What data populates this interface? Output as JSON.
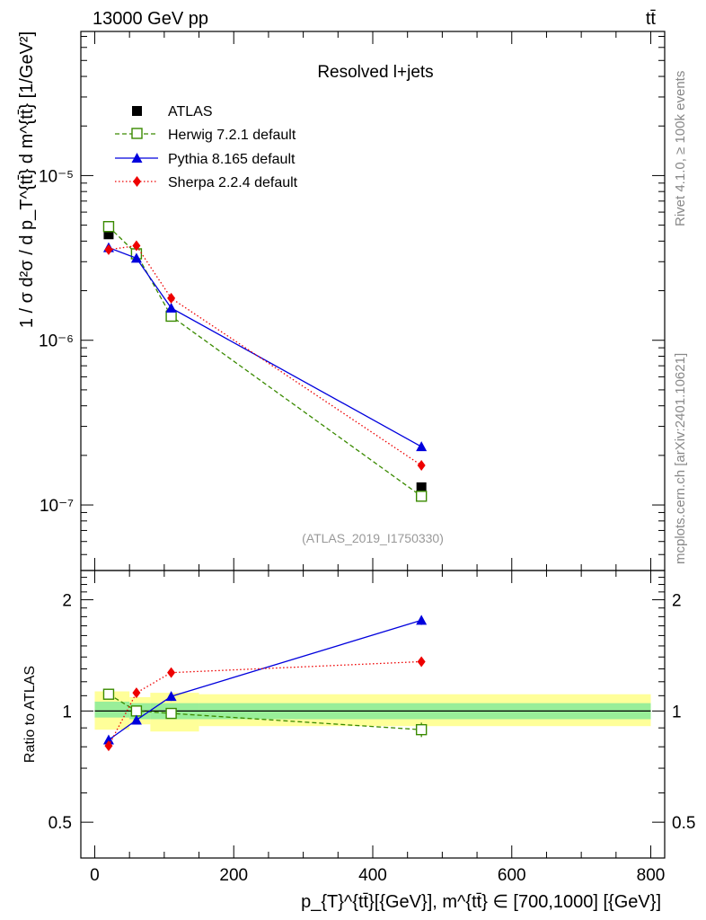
{
  "header": {
    "energy_label": "13000 GeV pp",
    "process_label": "tt̄"
  },
  "side_labels": {
    "rivet": "Rivet 4.1.0, ≥ 100k events",
    "source": "mcplots.cern.ch [arXiv:2401.10621]"
  },
  "chart_data": [
    {
      "type": "line",
      "panel": "main",
      "title": "Resolved l+jets",
      "watermark": "(ATLAS_2019_I1750330)",
      "ylabel": "1 / σ d²σ / d p_T^{tt̄} d m^{tt̄} [1/GeV²]",
      "yscale": "log",
      "xlim": [
        -20,
        820
      ],
      "ylim": [
        4e-08,
        7.5e-05
      ],
      "y_ticks": [
        {
          "value": 1e-07,
          "label": "10⁻⁷"
        },
        {
          "value": 1e-06,
          "label": "10⁻⁶"
        },
        {
          "value": 1e-05,
          "label": "10⁻⁵"
        }
      ],
      "legend_position": "top-left",
      "series": [
        {
          "name": "ATLAS",
          "style": "data-square",
          "color": "#000000",
          "x": [
            20,
            60,
            110,
            470
          ],
          "y": [
            4.4e-06,
            3.35e-06,
            1.42e-06,
            1.28e-07
          ]
        },
        {
          "name": "Herwig 7.2.1 default",
          "style": "open-square-dashed",
          "color": "#3a8a00",
          "x": [
            20,
            60,
            110,
            470
          ],
          "y": [
            4.9e-06,
            3.35e-06,
            1.4e-06,
            1.13e-07
          ]
        },
        {
          "name": "Pythia 8.165 default",
          "style": "triangle-solid",
          "color": "#0000dd",
          "x": [
            20,
            60,
            110,
            470
          ],
          "y": [
            3.65e-06,
            3.15e-06,
            1.57e-06,
            2.26e-07
          ]
        },
        {
          "name": "Sherpa 2.2.4 default",
          "style": "diamond-dotted",
          "color": "#ee0000",
          "x": [
            20,
            60,
            110,
            470
          ],
          "y": [
            3.55e-06,
            3.75e-06,
            1.8e-06,
            1.74e-07
          ]
        }
      ]
    },
    {
      "type": "line",
      "panel": "ratio",
      "ylabel": "Ratio to ATLAS",
      "xlabel": "p_{T}^{tt̄}[{GeV}], m^{tt̄} ∈ [700,1000] [{GeV}]",
      "yscale": "log",
      "xlim": [
        -20,
        820
      ],
      "ylim": [
        0.4,
        2.4
      ],
      "x_ticks": [
        0,
        200,
        400,
        600,
        800
      ],
      "y_ticks": [
        {
          "value": 0.5,
          "label": "0.5"
        },
        {
          "value": 1,
          "label": "1"
        },
        {
          "value": 2,
          "label": "2"
        }
      ],
      "bands": [
        {
          "x0": 0,
          "x1": 50,
          "stat_lo": 0.96,
          "stat_hi": 1.06,
          "tot_lo": 0.89,
          "tot_hi": 1.13
        },
        {
          "x0": 50,
          "x1": 80,
          "stat_lo": 0.95,
          "stat_hi": 1.05,
          "tot_lo": 0.92,
          "tot_hi": 1.09
        },
        {
          "x0": 80,
          "x1": 150,
          "stat_lo": 0.95,
          "stat_hi": 1.05,
          "tot_lo": 0.88,
          "tot_hi": 1.12
        },
        {
          "x0": 150,
          "x1": 800,
          "stat_lo": 0.95,
          "stat_hi": 1.05,
          "tot_lo": 0.91,
          "tot_hi": 1.11
        }
      ],
      "series": [
        {
          "name": "Herwig 7.2.1 default",
          "color": "#3a8a00",
          "style": "open-square-dashed",
          "x": [
            20,
            60,
            110,
            470
          ],
          "y": [
            1.11,
            1.0,
            0.985,
            0.89
          ],
          "err": [
            0.02,
            0.02,
            0.03,
            0.04
          ]
        },
        {
          "name": "Pythia 8.165 default",
          "color": "#0000dd",
          "style": "triangle-solid",
          "x": [
            20,
            60,
            110,
            470
          ],
          "y": [
            0.835,
            0.945,
            1.095,
            1.76
          ],
          "err": [
            0.02,
            0.02,
            0.03,
            0.05
          ]
        },
        {
          "name": "Sherpa 2.2.4 default",
          "color": "#ee0000",
          "style": "diamond-dotted",
          "x": [
            20,
            60,
            110,
            470
          ],
          "y": [
            0.805,
            1.12,
            1.27,
            1.36
          ],
          "err": [
            0.015,
            0.02,
            0.02,
            0.03
          ]
        }
      ]
    }
  ]
}
